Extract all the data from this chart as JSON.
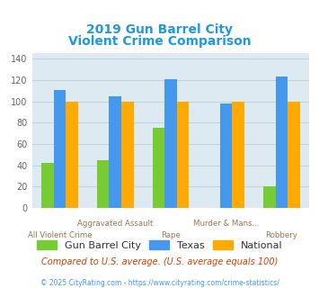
{
  "title_line1": "2019 Gun Barrel City",
  "title_line2": "Violent Crime Comparison",
  "title_color": "#2299dd",
  "groups": [
    {
      "label_top": "",
      "label_bottom": "All Violent Crime",
      "gbc": 42,
      "texas": 111,
      "national": 100
    },
    {
      "label_top": "Aggravated Assault",
      "label_bottom": "",
      "gbc": 45,
      "texas": 105,
      "national": 100
    },
    {
      "label_top": "",
      "label_bottom": "Rape",
      "gbc": 75,
      "texas": 121,
      "national": 100
    },
    {
      "label_top": "Murder & Mans...",
      "label_bottom": "",
      "gbc": 0,
      "texas": 98,
      "national": 100
    },
    {
      "label_top": "",
      "label_bottom": "Robbery",
      "gbc": 20,
      "texas": 123,
      "national": 100
    }
  ],
  "color_gbc": "#77cc33",
  "color_texas": "#4499ee",
  "color_national": "#ffaa00",
  "ylim": [
    0,
    145
  ],
  "yticks": [
    0,
    20,
    40,
    60,
    80,
    100,
    120,
    140
  ],
  "bar_width": 0.22,
  "grid_color": "#bbccdd",
  "bg_color": "#ddeaf2",
  "legend_labels": [
    "Gun Barrel City",
    "Texas",
    "National"
  ],
  "footnote1": "Compared to U.S. average. (U.S. average equals 100)",
  "footnote2": "© 2025 CityRating.com - https://www.cityrating.com/crime-statistics/",
  "footnote1_color": "#cc4400",
  "footnote2_color": "#4499ee"
}
